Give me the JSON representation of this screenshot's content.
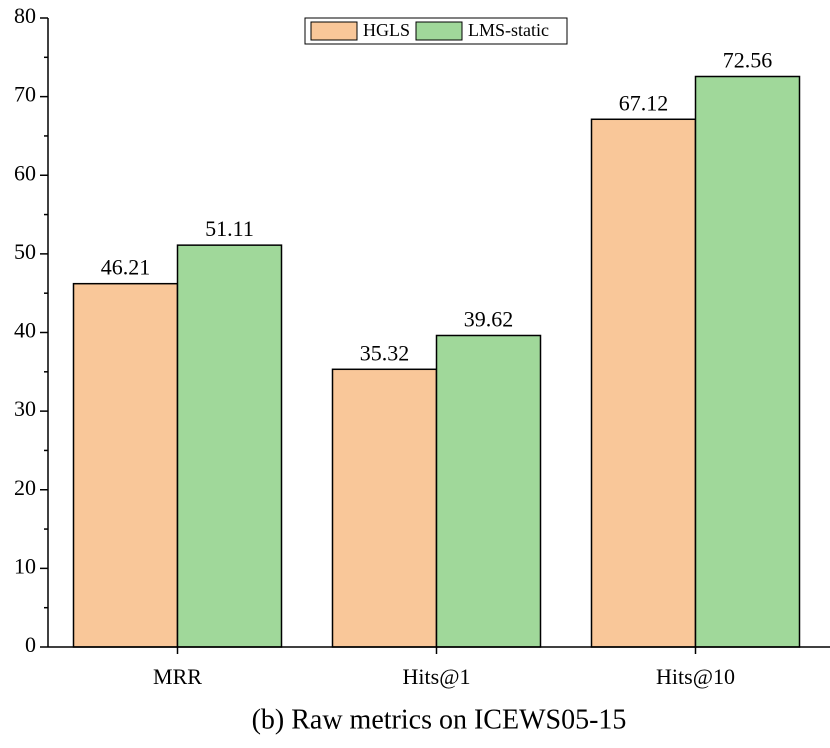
{
  "chart_data": {
    "type": "bar",
    "title": "(b) Raw metrics on ICEWS05-15",
    "categories": [
      "MRR",
      "Hits@1",
      "Hits@10"
    ],
    "series": [
      {
        "name": "HGLS",
        "color": "#f9c799",
        "values": [
          46.21,
          35.32,
          67.12
        ]
      },
      {
        "name": "LMS-static",
        "color": "#a0d89a",
        "values": [
          51.11,
          39.62,
          72.56
        ]
      }
    ],
    "ylim": [
      0,
      80
    ],
    "yticks": [
      0,
      10,
      20,
      30,
      40,
      50,
      60,
      70,
      80
    ],
    "legend": "top"
  }
}
